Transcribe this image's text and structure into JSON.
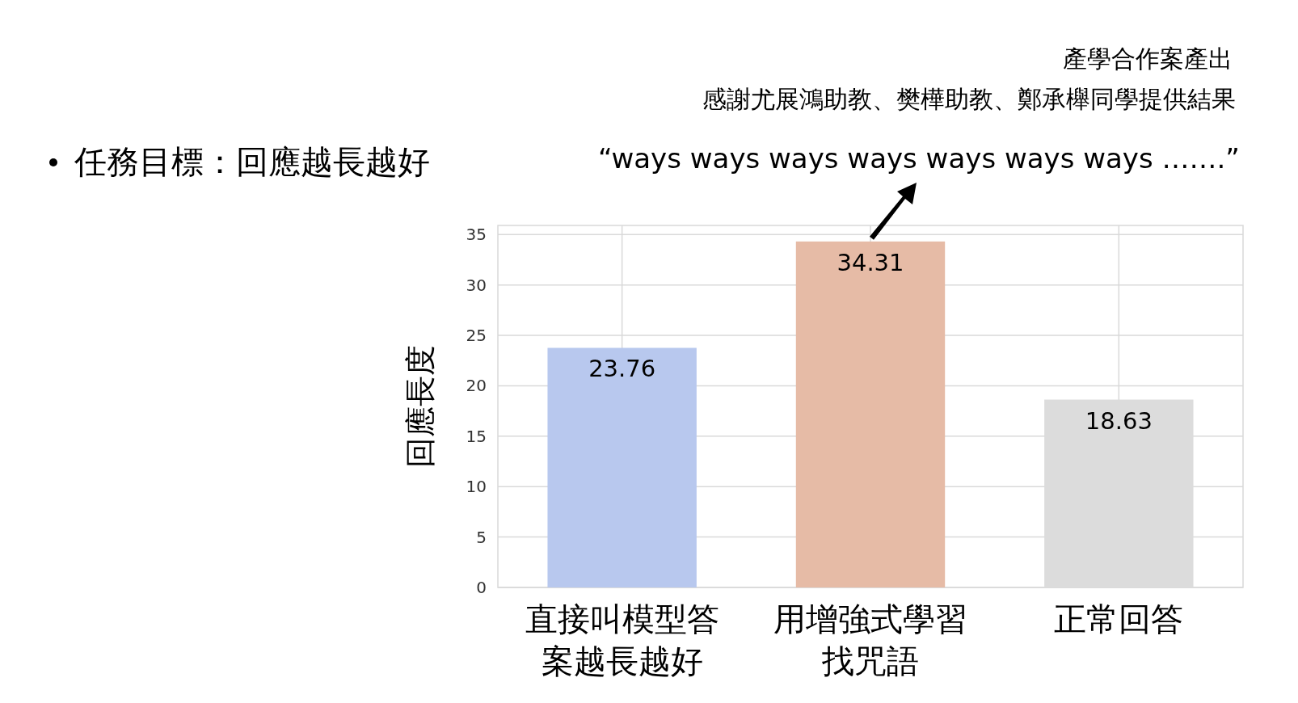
{
  "chart_data": {
    "type": "bar",
    "ylabel": "回應長度",
    "categories": [
      "直接叫模型答案越長越好",
      "用增強式學習找咒語",
      "正常回答"
    ],
    "values": [
      23.76,
      34.31,
      18.63
    ],
    "colors": [
      "#b8c8ee",
      "#e6bba6",
      "#dcdcdc"
    ],
    "ylim": [
      0,
      35.9
    ],
    "yticks": [
      0,
      5,
      10,
      15,
      20,
      25,
      30,
      35
    ],
    "grid": true,
    "data_labels": true,
    "annotations": [
      "產學合作案產出",
      "感謝尤展鴻助教、樊樺助教、鄭承櫸同學提供結果",
      "任務目標：回應越長越好",
      {
        "text": "“ways ways ways ways ways ways ways …….”",
        "x": "用增強式學習找咒語",
        "y": 34.31
      }
    ]
  }
}
